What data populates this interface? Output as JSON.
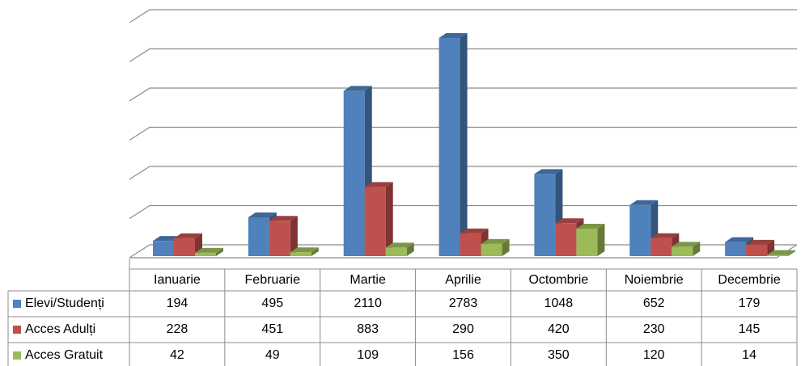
{
  "chart_data": {
    "type": "bar3d",
    "categories": [
      "Ianuarie",
      "Februarie",
      "Martie",
      "Aprilie",
      "Octombrie",
      "Noiembrie",
      "Decembrie"
    ],
    "series": [
      {
        "name": "Elevi/Studenți",
        "color": "#4f81bd",
        "values": [
          194,
          495,
          2110,
          2783,
          1048,
          652,
          179
        ]
      },
      {
        "name": "Acces Adulți",
        "color": "#c0504d",
        "values": [
          228,
          451,
          883,
          290,
          420,
          230,
          145
        ]
      },
      {
        "name": "Acces Gratuit",
        "color": "#9bbb59",
        "values": [
          42,
          49,
          109,
          156,
          350,
          120,
          14
        ]
      }
    ],
    "ylim": [
      0,
      3000
    ],
    "yticks": [
      0,
      500,
      1000,
      1500,
      2000,
      2500,
      3000
    ],
    "grid": true
  }
}
